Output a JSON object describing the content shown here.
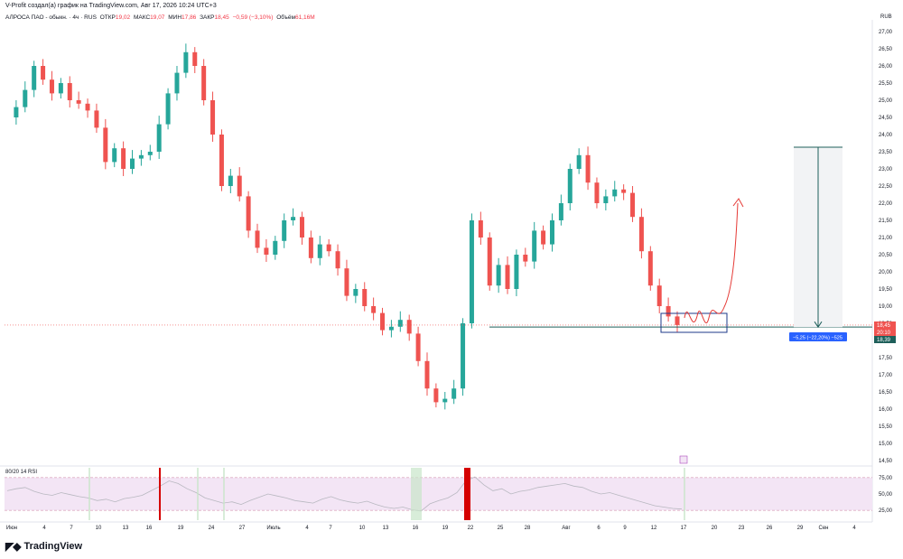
{
  "header": {
    "published_by": "V-Profit создал(а) график на TradingView.com, Авг 17, 2026 10:24 UTC+3"
  },
  "legend": {
    "symbol": "АЛРОСА ПАО - обыкн. · 4ч · RUS",
    "open_label": "ОТКР",
    "open_value": "19,02",
    "high_label": "МАКС",
    "high_value": "19,07",
    "low_label": "МИН",
    "low_value": "17,86",
    "close_label": "ЗАКР",
    "close_value": "18,45",
    "change_value": "−0,59 (−3,10%)",
    "volume_label": "Объём",
    "volume_value": "61,16M"
  },
  "currency": "RUB",
  "rsi_title": "80/20 14 RSI",
  "brand": {
    "logo_icon": "tradingview-logo-icon",
    "name": "TradingView"
  },
  "colors": {
    "up": "#26a69a",
    "down": "#ef5350",
    "rsi_band": "#f3e5f5",
    "marker": "#e53935",
    "measure": "#1e5f5a",
    "label_blue": "#2962ff"
  },
  "chart_data": {
    "type": "candlestick",
    "y_ticks": [
      "27,00",
      "26,50",
      "26,00",
      "25,50",
      "25,00",
      "24,50",
      "24,00",
      "23,50",
      "23,00",
      "22,50",
      "22,00",
      "21,50",
      "21,00",
      "20,50",
      "20,00",
      "19,50",
      "19,00",
      "18,50",
      "18,00",
      "17,50",
      "17,00",
      "16,50",
      "16,00",
      "15,50",
      "15,00",
      "14,50"
    ],
    "y_range": [
      14.5,
      27.0
    ],
    "x_ticks": [
      "Июн",
      "4",
      "7",
      "10",
      "13",
      "16",
      "19",
      "24",
      "27",
      "Июль",
      "4",
      "7",
      "10",
      "13",
      "16",
      "19",
      "22",
      "25",
      "28",
      "Авг",
      "6",
      "9",
      "12",
      "17",
      "20",
      "23",
      "26",
      "29",
      "Сен",
      "4"
    ],
    "price_labels": [
      {
        "text": "18,45",
        "color": "#ef5350"
      },
      {
        "text": "20:10",
        "color": "#ef5350"
      },
      {
        "text": "18,39",
        "color": "#1e5f5a"
      }
    ],
    "measure_label": "−5,25 (−22,20%) −525",
    "support_level": 18.39,
    "close_path": [
      24.5,
      24.8,
      25.3,
      26.0,
      25.6,
      25.2,
      25.5,
      25.0,
      24.9,
      24.7,
      24.2,
      23.2,
      23.6,
      23.0,
      23.3,
      23.4,
      23.5,
      24.3,
      25.2,
      25.8,
      26.4,
      26.0,
      25.0,
      24.0,
      22.5,
      22.8,
      22.2,
      21.2,
      20.7,
      20.5,
      20.9,
      21.5,
      21.6,
      21.0,
      20.4,
      20.8,
      20.6,
      20.1,
      19.3,
      19.5,
      19.0,
      18.8,
      18.3,
      18.4,
      18.6,
      18.2,
      17.4,
      16.6,
      16.2,
      16.3,
      16.6,
      18.5,
      21.5,
      21.0,
      19.6,
      20.2,
      19.5,
      20.5,
      20.3,
      21.2,
      20.8,
      21.5,
      22.0,
      23.0,
      23.4,
      22.6,
      22.0,
      22.2,
      22.4,
      22.3,
      21.6,
      20.6,
      19.6,
      19.0,
      18.7,
      18.45
    ]
  },
  "rsi_data": {
    "y_ticks": [
      "75,00",
      "50,00",
      "25,00"
    ],
    "series": [
      55,
      58,
      60,
      54,
      50,
      48,
      52,
      49,
      46,
      44,
      40,
      42,
      38,
      43,
      45,
      48,
      55,
      62,
      70,
      66,
      58,
      52,
      44,
      40,
      36,
      38,
      34,
      40,
      45,
      50,
      47,
      44,
      40,
      38,
      36,
      42,
      46,
      41,
      38,
      36,
      39,
      34,
      30,
      28,
      30,
      26,
      24,
      35,
      40,
      44,
      52,
      70,
      76,
      64,
      55,
      58,
      50,
      54,
      56,
      60,
      62,
      64,
      66,
      62,
      60,
      54,
      50,
      52,
      48,
      44,
      40,
      36,
      32,
      30,
      28,
      27
    ]
  }
}
